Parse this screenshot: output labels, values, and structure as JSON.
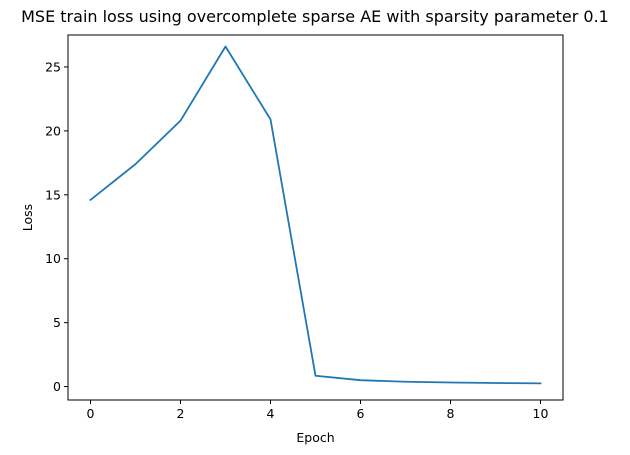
{
  "chart_data": {
    "type": "line",
    "title": "MSE train loss using overcomplete sparse AE with sparsity parameter 0.1",
    "xlabel": "Epoch",
    "ylabel": "Loss",
    "xlim": [
      -0.5,
      10.5
    ],
    "ylim": [
      -1.05,
      27.5
    ],
    "xticks": [
      0,
      2,
      4,
      6,
      8,
      10
    ],
    "yticks": [
      0,
      5,
      10,
      15,
      20,
      25
    ],
    "grid": false,
    "legend": "none",
    "series": [
      {
        "color": "#1f77b4",
        "x": [
          0,
          1,
          2,
          3,
          4,
          5,
          6,
          7,
          8,
          9,
          10
        ],
        "y": [
          14.6,
          17.4,
          20.8,
          26.6,
          20.9,
          0.85,
          0.5,
          0.38,
          0.32,
          0.28,
          0.25
        ]
      }
    ]
  }
}
